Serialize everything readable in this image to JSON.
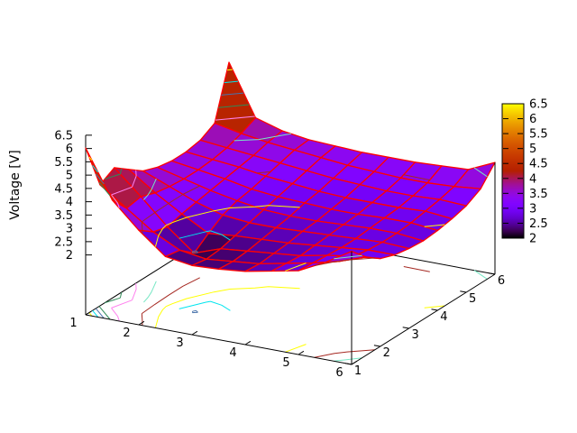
{
  "chart_data": {
    "type": "surface",
    "title": "",
    "zlabel": "Voltage [V]",
    "x_range": [
      1,
      6
    ],
    "y_range": [
      1,
      6
    ],
    "z_range": [
      2,
      6.5
    ],
    "x_ticks": [
      "1",
      "2",
      "3",
      "4",
      "5",
      "6"
    ],
    "y_ticks": [
      "1",
      "2",
      "3",
      "4",
      "5",
      "6"
    ],
    "z_ticks": [
      "2",
      "2.5",
      "3",
      "3.5",
      "4",
      "4.5",
      "5",
      "5.5",
      "6",
      "6.5"
    ],
    "z_tick_values": [
      2,
      2.5,
      3,
      3.5,
      4,
      4.5,
      5,
      5.5,
      6,
      6.5
    ],
    "colorbar_ticks": [
      "2",
      "2.5",
      "3",
      "3.5",
      "4",
      "4.5",
      "5",
      "5.5",
      "6",
      "6.5"
    ],
    "colorbar_tick_values": [
      2,
      2.5,
      3,
      3.5,
      4,
      4.5,
      5,
      5.5,
      6,
      6.5
    ],
    "x": [
      1,
      1.5,
      2,
      2.5,
      3,
      3.5,
      4,
      4.5,
      5,
      5.5,
      6
    ],
    "y": [
      1,
      1.5,
      2,
      2.5,
      3,
      3.5,
      4,
      4.5,
      5,
      5.5,
      6
    ],
    "z_grid": [
      [
        6.02,
        4.25,
        3.3,
        2.5,
        2.35,
        2.4,
        2.5,
        2.7,
        2.9,
        3.4,
        4.0
      ],
      [
        4.3,
        3.6,
        2.9,
        2.4,
        2.25,
        2.35,
        2.45,
        2.65,
        2.85,
        3.1,
        3.45
      ],
      [
        4.6,
        3.7,
        2.75,
        1.95,
        2.3,
        2.4,
        2.5,
        2.6,
        2.8,
        2.95,
        3.05
      ],
      [
        4.2,
        3.5,
        2.9,
        2.35,
        2.45,
        2.5,
        2.55,
        2.65,
        2.75,
        2.85,
        2.85
      ],
      [
        3.8,
        3.4,
        3.0,
        2.7,
        2.6,
        2.6,
        2.65,
        2.7,
        2.75,
        2.8,
        2.75
      ],
      [
        3.6,
        3.35,
        3.1,
        2.9,
        2.75,
        2.7,
        2.7,
        2.75,
        2.8,
        2.8,
        2.7
      ],
      [
        3.5,
        3.35,
        3.2,
        3.0,
        2.9,
        2.85,
        2.8,
        2.8,
        2.85,
        2.85,
        2.75
      ],
      [
        3.5,
        3.4,
        3.3,
        3.15,
        3.05,
        2.95,
        2.9,
        2.9,
        2.9,
        2.95,
        2.85
      ],
      [
        3.6,
        3.5,
        3.4,
        3.3,
        3.2,
        3.1,
        3.05,
        3.0,
        3.0,
        3.05,
        3.0
      ],
      [
        3.9,
        3.7,
        3.55,
        3.45,
        3.35,
        3.25,
        3.2,
        3.15,
        3.15,
        3.2,
        3.3
      ],
      [
        5.85,
        3.95,
        3.65,
        3.5,
        3.45,
        3.4,
        3.4,
        3.4,
        3.45,
        3.5,
        3.95
      ]
    ],
    "contour_levels": [
      2.0,
      2.4,
      2.8,
      3.2,
      3.6,
      4.0,
      4.4,
      4.8,
      5.2,
      5.6,
      6.0
    ],
    "contour_colors": [
      "#4973ab",
      "#00e5ee",
      "#ffff00",
      "#a52821",
      "#76e7c4",
      "#ff82ee",
      "#2e8b57",
      "#4973ab",
      "#00e5ee",
      "#ffff00",
      "#a52821"
    ],
    "mesh_color": "#ff0000",
    "axis_color": "#000000",
    "text_color": "#000000",
    "palette": {
      "name": "pm3d-black-blue-red-yellow",
      "low": "#000000",
      "mid": "#8000ff",
      "high_mid": "#c83200",
      "high": "#ffff00"
    }
  }
}
